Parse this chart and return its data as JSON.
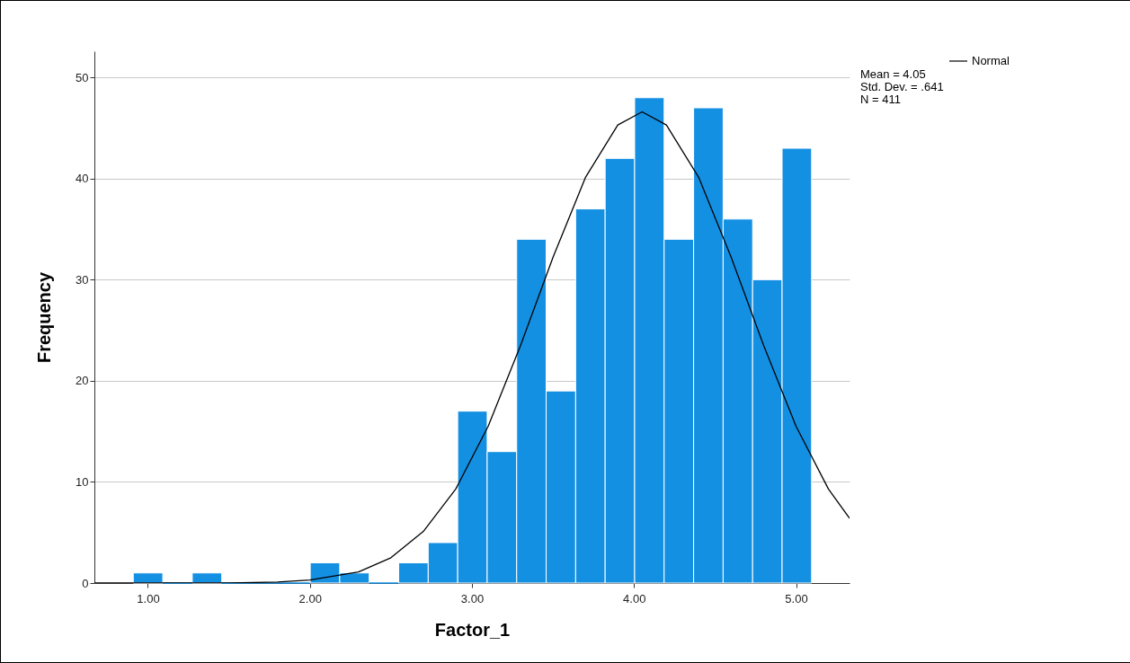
{
  "chart_data": {
    "type": "histogram",
    "xlabel": "Factor_1",
    "ylabel": "Frequency",
    "bins": [
      0.91,
      1.092,
      1.274,
      1.456,
      1.638,
      1.82,
      2.002,
      2.184,
      2.366,
      2.548,
      2.73,
      2.912,
      3.094,
      3.276,
      3.458,
      3.64,
      3.822,
      4.004,
      4.186,
      4.368,
      4.55,
      4.732,
      4.914,
      5.096
    ],
    "series": [
      {
        "color": "#1490e3",
        "values": [
          1,
          0,
          1,
          0,
          0,
          0,
          2,
          1,
          0,
          2,
          4,
          17,
          13,
          34,
          19,
          37,
          42,
          48,
          34,
          47,
          36,
          30,
          43
        ]
      },
      {
        "type": "line",
        "name": "Normal",
        "color": "#000000",
        "x": [
          0.67,
          1.0,
          1.5,
          1.8,
          2.0,
          2.3,
          2.5,
          2.7,
          2.9,
          3.1,
          3.3,
          3.5,
          3.7,
          3.9,
          4.05,
          4.2,
          4.4,
          4.6,
          4.8,
          5.0,
          5.2,
          5.33
        ],
        "values": [
          0,
          0,
          0,
          0.1,
          0.3,
          1.1,
          2.5,
          5.1,
          9.3,
          15.5,
          23.5,
          32.2,
          40.1,
          45.3,
          46.6,
          45.3,
          40.1,
          32.2,
          23.5,
          15.5,
          9.3,
          6.4
        ]
      }
    ],
    "xlim": [
      0.67,
      5.33
    ],
    "xticks": [
      {
        "value": 1,
        "label": "1.00"
      },
      {
        "value": 2,
        "label": "2.00"
      },
      {
        "value": 3,
        "label": "3.00"
      },
      {
        "value": 4,
        "label": "4.00"
      },
      {
        "value": 5,
        "label": "5.00"
      }
    ],
    "ylim": [
      0,
      52.6
    ],
    "yticks": [
      0,
      10,
      20,
      30,
      40,
      50
    ],
    "grid": "y",
    "legend": "top right",
    "annotations": [
      "Mean = 4.05",
      "Std. Dev. = .641",
      "N = 411"
    ]
  }
}
